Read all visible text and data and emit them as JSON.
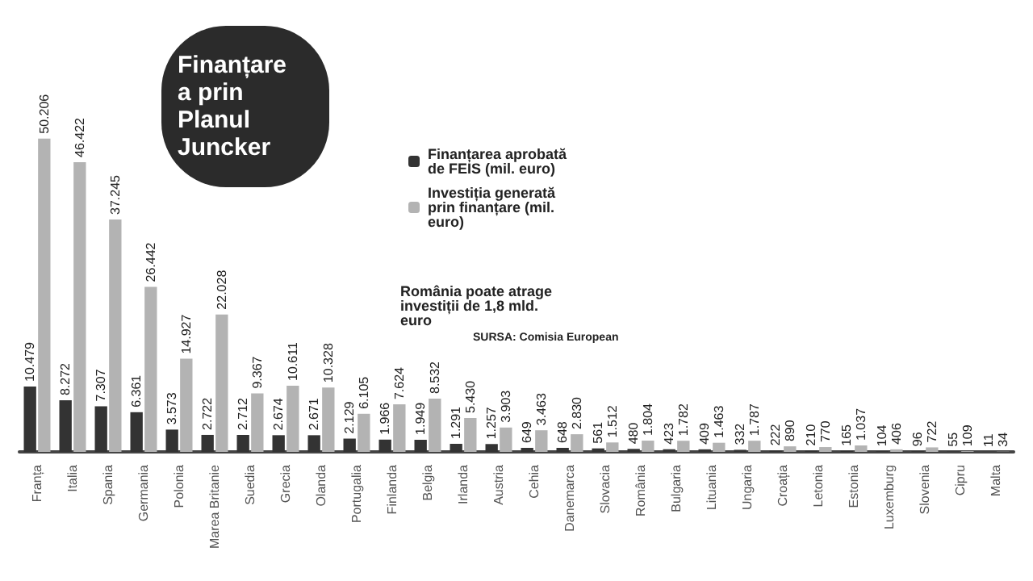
{
  "chart_data": {
    "type": "bar",
    "title": "Finanțarea prin Planul Juncker",
    "categories": [
      "Franța",
      "Italia",
      "Spania",
      "Germania",
      "Polonia",
      "Marea Britanie",
      "Suedia",
      "Grecia",
      "Olanda",
      "Portugalia",
      "Finlanda",
      "Belgia",
      "Irlanda",
      "Austria",
      "Cehia",
      "Danemarca",
      "Slovacia",
      "România",
      "Bulgaria",
      "Lituania",
      "Ungaria",
      "Croația",
      "Letonia",
      "Estonia",
      "Luxemburg",
      "Slovenia",
      "Cipru",
      "Malta"
    ],
    "series": [
      {
        "name": "Finanțarea aprobată de FEIS (mil. euro)",
        "color": "#333333",
        "values": [
          10479,
          8272,
          7307,
          6361,
          3573,
          2722,
          2712,
          2674,
          2671,
          2129,
          1966,
          1949,
          1291,
          1257,
          649,
          648,
          561,
          480,
          423,
          409,
          332,
          222,
          210,
          165,
          104,
          96,
          55,
          11
        ],
        "value_labels": [
          "10.479",
          "8.272",
          "7.307",
          "6.361",
          "3.573",
          "2.722",
          "2.712",
          "2.674",
          "2.671",
          "2.129",
          "1.966",
          "1.949",
          "1.291",
          "1.257",
          "649",
          "648",
          "561",
          "480",
          "423",
          "409",
          "332",
          "222",
          "210",
          "165",
          "104",
          "96",
          "55",
          "11"
        ]
      },
      {
        "name": "Investiția generată prin finanțare (mil. euro)",
        "color": "#b3b3b3",
        "values": [
          50206,
          46422,
          37245,
          26442,
          14927,
          22028,
          9367,
          10611,
          10328,
          6105,
          7624,
          8532,
          5430,
          3903,
          3463,
          2830,
          1512,
          1804,
          1782,
          1463,
          1787,
          890,
          770,
          1037,
          406,
          722,
          109,
          34
        ],
        "value_labels": [
          "50.206",
          "46.422",
          "37.245",
          "26.442",
          "14.927",
          "22.028",
          "9.367",
          "10.611",
          "10.328",
          "6.105",
          "7.624",
          "8.532",
          "5.430",
          "3.903",
          "3.463",
          "2.830",
          "1.512",
          "1.804",
          "1.782",
          "1.463",
          "1.787",
          "890",
          "770",
          "1.037",
          "406",
          "722",
          "109",
          "34"
        ]
      }
    ],
    "legend": "top",
    "annotations": [
      "România poate atrage investiții de 1,8 mld. euro",
      "SURSA: Comisia European"
    ]
  }
}
